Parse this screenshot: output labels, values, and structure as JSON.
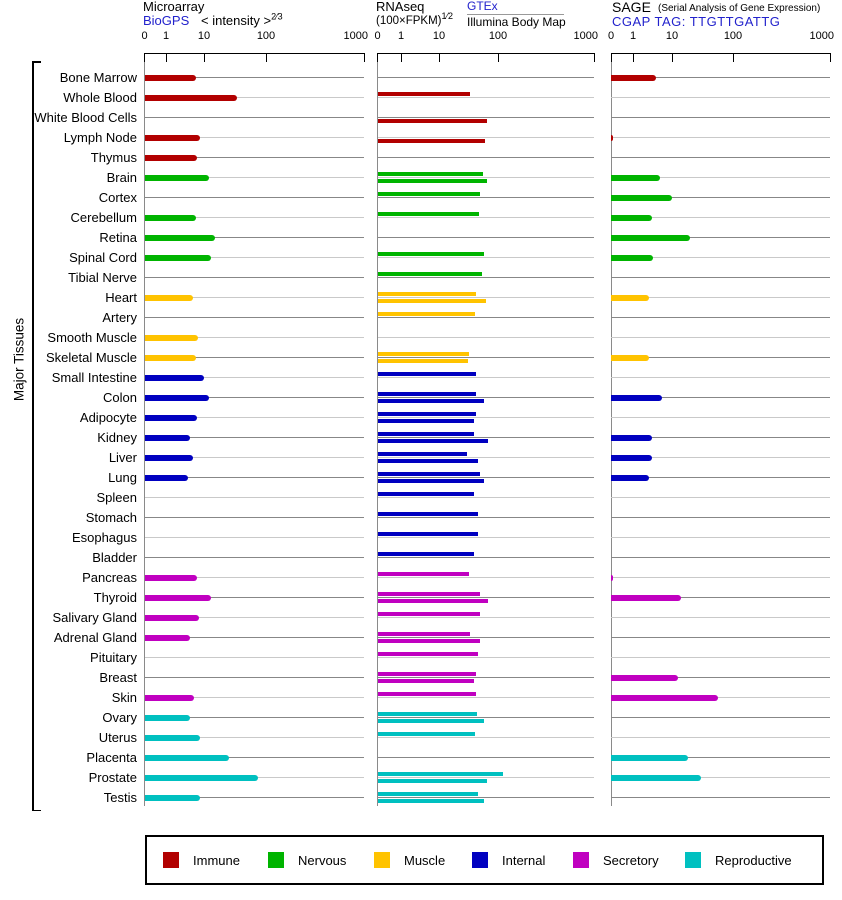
{
  "left_label": "Major Tissues",
  "panels": {
    "microarray": {
      "title": "Microarray",
      "link_label": "BioGPS",
      "formula": "< intensity >",
      "formula_sup": "2⁄3"
    },
    "rnaseq": {
      "title": "RNAseq",
      "formula": "(100×FPKM)",
      "formula_sup": "1⁄2",
      "link_label": "GTEx",
      "sublabel": "Illumina Body Map"
    },
    "sage": {
      "title": "SAGE",
      "subtitle": "(Serial Analysis of Gene Expression)",
      "link_label": "CGAP TAG: TTGTTGATTG"
    }
  },
  "legend": {
    "items": [
      {
        "label": "Immune",
        "category": "immune"
      },
      {
        "label": "Nervous",
        "category": "nervous"
      },
      {
        "label": "Muscle",
        "category": "muscle"
      },
      {
        "label": "Internal",
        "category": "internal"
      },
      {
        "label": "Secretory",
        "category": "secretory"
      },
      {
        "label": "Reproductive",
        "category": "reproductive"
      }
    ]
  },
  "chart_data": {
    "type": "bar",
    "orientation": "horizontal",
    "axis": {
      "scale": "log",
      "ticks": [
        "0",
        "1",
        "10",
        "100",
        "1000"
      ],
      "tick_values": [
        0,
        1,
        10,
        100,
        1000
      ]
    },
    "categories": {
      "immune": "#b20000",
      "nervous": "#00b400",
      "muscle": "#ffc300",
      "internal": "#0000c0",
      "secretory": "#c000c0",
      "reproductive": "#00c0c0"
    },
    "series_labels": {
      "microarray": "Microarray (BioGPS)",
      "rnaseq_gtex": "RNAseq (GTEx)",
      "rnaseq_illumina": "RNAseq (Illumina Body Map)",
      "sage": "SAGE (CGAP)"
    },
    "tissues": [
      {
        "name": "Bone Marrow",
        "category": "immune",
        "microarray": 6,
        "rnaseq_gtex": null,
        "rnaseq_illumina": null,
        "sage": 4
      },
      {
        "name": "Whole Blood",
        "category": "immune",
        "microarray": 34,
        "rnaseq_gtex": 33,
        "rnaseq_illumina": null,
        "sage": null
      },
      {
        "name": "White Blood Cells",
        "category": "immune",
        "microarray": null,
        "rnaseq_gtex": null,
        "rnaseq_illumina": 66,
        "sage": null
      },
      {
        "name": "Lymph Node",
        "category": "immune",
        "microarray": 8,
        "rnaseq_gtex": null,
        "rnaseq_illumina": 61,
        "sage": 0.1
      },
      {
        "name": "Thymus",
        "category": "immune",
        "microarray": 6.5,
        "rnaseq_gtex": null,
        "rnaseq_illumina": null,
        "sage": null
      },
      {
        "name": "Brain",
        "category": "nervous",
        "microarray": 12,
        "rnaseq_gtex": 55,
        "rnaseq_illumina": 65,
        "sage": 5
      },
      {
        "name": "Cortex",
        "category": "nervous",
        "microarray": null,
        "rnaseq_gtex": 50,
        "rnaseq_illumina": null,
        "sage": 10
      },
      {
        "name": "Cerebellum",
        "category": "nervous",
        "microarray": 6,
        "rnaseq_gtex": 47,
        "rnaseq_illumina": null,
        "sage": 3
      },
      {
        "name": "Retina",
        "category": "nervous",
        "microarray": 15,
        "rnaseq_gtex": null,
        "rnaseq_illumina": null,
        "sage": 20
      },
      {
        "name": "Spinal Cord",
        "category": "nervous",
        "microarray": 13,
        "rnaseq_gtex": 59,
        "rnaseq_illumina": null,
        "sage": 3.3
      },
      {
        "name": "Tibial Nerve",
        "category": "nervous",
        "microarray": null,
        "rnaseq_gtex": 54,
        "rnaseq_illumina": null,
        "sage": null
      },
      {
        "name": "Heart",
        "category": "muscle",
        "microarray": 5,
        "rnaseq_gtex": 42,
        "rnaseq_illumina": 63,
        "sage": 2.6
      },
      {
        "name": "Artery",
        "category": "muscle",
        "microarray": null,
        "rnaseq_gtex": 41,
        "rnaseq_illumina": null,
        "sage": null
      },
      {
        "name": "Smooth Muscle",
        "category": "muscle",
        "microarray": 7,
        "rnaseq_gtex": null,
        "rnaseq_illumina": null,
        "sage": null
      },
      {
        "name": "Skeletal Muscle",
        "category": "muscle",
        "microarray": 6,
        "rnaseq_gtex": 32,
        "rnaseq_illumina": 31,
        "sage": 2.6
      },
      {
        "name": "Small Intestine",
        "category": "internal",
        "microarray": 10,
        "rnaseq_gtex": 42,
        "rnaseq_illumina": null,
        "sage": null
      },
      {
        "name": "Colon",
        "category": "internal",
        "microarray": 12,
        "rnaseq_gtex": 42,
        "rnaseq_illumina": 58,
        "sage": 5.6
      },
      {
        "name": "Adipocyte",
        "category": "internal",
        "microarray": 6.5,
        "rnaseq_gtex": 42,
        "rnaseq_illumina": 39,
        "sage": null
      },
      {
        "name": "Kidney",
        "category": "internal",
        "microarray": 4.3,
        "rnaseq_gtex": 39,
        "rnaseq_illumina": 68,
        "sage": 3
      },
      {
        "name": "Liver",
        "category": "internal",
        "microarray": 5,
        "rnaseq_gtex": 30,
        "rnaseq_illumina": 46,
        "sage": 3
      },
      {
        "name": "Lung",
        "category": "internal",
        "microarray": 3.8,
        "rnaseq_gtex": 50,
        "rnaseq_illumina": 58,
        "sage": 2.5
      },
      {
        "name": "Spleen",
        "category": "internal",
        "microarray": null,
        "rnaseq_gtex": 39,
        "rnaseq_illumina": null,
        "sage": null
      },
      {
        "name": "Stomach",
        "category": "internal",
        "microarray": null,
        "rnaseq_gtex": 45,
        "rnaseq_illumina": null,
        "sage": null
      },
      {
        "name": "Esophagus",
        "category": "internal",
        "microarray": null,
        "rnaseq_gtex": 45,
        "rnaseq_illumina": null,
        "sage": null
      },
      {
        "name": "Bladder",
        "category": "internal",
        "microarray": null,
        "rnaseq_gtex": 39,
        "rnaseq_illumina": null,
        "sage": null
      },
      {
        "name": "Pancreas",
        "category": "secretory",
        "microarray": 6.5,
        "rnaseq_gtex": 32,
        "rnaseq_illumina": null,
        "sage": 0.1
      },
      {
        "name": "Thyroid",
        "category": "secretory",
        "microarray": 13,
        "rnaseq_gtex": 50,
        "rnaseq_illumina": 69,
        "sage": 14
      },
      {
        "name": "Salivary Gland",
        "category": "secretory",
        "microarray": 7.5,
        "rnaseq_gtex": 50,
        "rnaseq_illumina": null,
        "sage": null
      },
      {
        "name": "Adrenal Gland",
        "category": "secretory",
        "microarray": 4.3,
        "rnaseq_gtex": 34,
        "rnaseq_illumina": 50,
        "sage": null
      },
      {
        "name": "Pituitary",
        "category": "secretory",
        "microarray": null,
        "rnaseq_gtex": 46,
        "rnaseq_illumina": null,
        "sage": null
      },
      {
        "name": "Breast",
        "category": "secretory",
        "microarray": null,
        "rnaseq_gtex": 42,
        "rnaseq_illumina": 39,
        "sage": 12.5
      },
      {
        "name": "Skin",
        "category": "secretory",
        "microarray": 5.5,
        "rnaseq_gtex": 42,
        "rnaseq_illumina": null,
        "sage": 57
      },
      {
        "name": "Ovary",
        "category": "reproductive",
        "microarray": 4.3,
        "rnaseq_gtex": 44,
        "rnaseq_illumina": 59,
        "sage": null
      },
      {
        "name": "Uterus",
        "category": "reproductive",
        "microarray": 8,
        "rnaseq_gtex": 41,
        "rnaseq_illumina": null,
        "sage": null
      },
      {
        "name": "Placenta",
        "category": "reproductive",
        "microarray": 25,
        "rnaseq_gtex": null,
        "rnaseq_illumina": null,
        "sage": 18
      },
      {
        "name": "Prostate",
        "category": "reproductive",
        "microarray": 75,
        "rnaseq_gtex": 114,
        "rnaseq_illumina": 65,
        "sage": 30
      },
      {
        "name": "Testis",
        "category": "reproductive",
        "microarray": 8,
        "rnaseq_gtex": 46,
        "rnaseq_illumina": 59,
        "sage": null
      }
    ]
  }
}
